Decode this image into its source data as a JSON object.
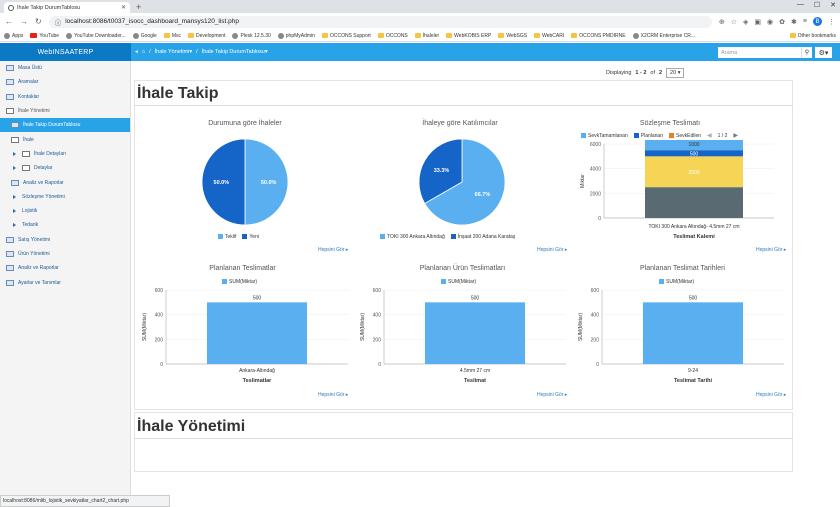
{
  "browser": {
    "tab_title": "İhale Takip DurumTablosu",
    "url": "localhost:8086/t0037_isocc_dashboard_mansys120_list.php",
    "bookmarks": [
      "Apps",
      "YouTube",
      "YouTube Downloader...",
      "Google",
      "Msc",
      "Development",
      "Plesk 12.5.30",
      "phpMyAdmin",
      "OCCONS Support",
      "OCCONS",
      "İhaleler",
      "WebKOBIS ERP",
      "WebSGS",
      "WebCARI",
      "OCCONS PMDIRNE",
      "X2CRM Enterprise CR...",
      "Other bookmarks"
    ],
    "status_url": "localhost:8086/mlib_lojistik_sevkiyatlar_chart2_chart.php"
  },
  "app": {
    "brand": "WebINSAATERP",
    "breadcrumb": [
      "İhale Yönetimi",
      "İhale Takip DurumTablosu"
    ],
    "search_placeholder": "Arama"
  },
  "sidebar": {
    "items": [
      {
        "label": "Masa Üstü"
      },
      {
        "label": "Aramalar"
      },
      {
        "label": "Kontaklar"
      },
      {
        "label": "İhale Yönetimi"
      },
      {
        "label": "İhale Takip DurumTablosu"
      },
      {
        "label": "İhale"
      },
      {
        "label": "İhale Detayları"
      },
      {
        "label": "Detaylar"
      },
      {
        "label": "Analiz ve Raporlar"
      },
      {
        "label": "Sözleşme Yönetimi"
      },
      {
        "label": "Lojistik"
      },
      {
        "label": "Tedarik"
      },
      {
        "label": "Satış Yönetimi"
      },
      {
        "label": "Ürün Yönetimi"
      },
      {
        "label": "Analiz ve Raporlar"
      },
      {
        "label": "Ayarlar ve Tanımlar"
      }
    ]
  },
  "pager": {
    "prefix": "Displaying",
    "range": "1 - 2",
    "of": "of",
    "total": "2",
    "page_size": "20"
  },
  "main": {
    "title": "İhale Takip",
    "section2_title": "İhale Yönetimi",
    "see_all": "Hepsini Gör"
  },
  "colors": {
    "light_blue": "#5aaff0",
    "dark_blue": "#1565c8",
    "orange": "#f07d22",
    "yellow": "#f5d456",
    "slate": "#5a6a72"
  },
  "chart_data": [
    {
      "type": "pie",
      "title": "Durumuna göre İhaleler",
      "labels": [
        "Teklif",
        "Yeni"
      ],
      "values": [
        50.0,
        50.0
      ],
      "value_labels": [
        "50.0%",
        "50.0%"
      ]
    },
    {
      "type": "pie",
      "title": "İhaleye göre Katılımcılar",
      "labels": [
        "TOKI 300 Ankara Altındağ",
        "İnşaat 200 Adana Karataş"
      ],
      "values": [
        66.7,
        33.3
      ],
      "value_labels": [
        "66.7%",
        "33.3%"
      ]
    },
    {
      "type": "bar",
      "title": "Sözleşme Teslimatı",
      "legend": [
        "SevkTamamlanan",
        "Planlanan",
        "SevkEdilen"
      ],
      "legend_pager": "1 / 2",
      "categories": [
        "TOKI 300 Ankara Altındağ- 4.5mm 27 cm"
      ],
      "stack": [
        {
          "label": "",
          "value": 2500
        },
        {
          "label": "2500",
          "value": 2500
        },
        {
          "label": "500",
          "value": 500
        },
        {
          "label": "1000",
          "value": 1000
        }
      ],
      "xlabel": "Teslimat Kalemi",
      "ylabel": "Miktar",
      "ylim": [
        0,
        6000
      ],
      "yticks": [
        "6000",
        "4000",
        "2000",
        "0"
      ]
    },
    {
      "type": "bar",
      "title": "Planlanan Teslimatlar",
      "legend": [
        "SUM(Miktar)"
      ],
      "categories": [
        "Ankara-Altındağ"
      ],
      "values": [
        500
      ],
      "value_labels": [
        "500"
      ],
      "xlabel": "Teslimatlar",
      "ylabel": "SUM(Miktar)",
      "ylim": [
        0,
        600
      ],
      "yticks": [
        "600",
        "400",
        "200",
        "0"
      ]
    },
    {
      "type": "bar",
      "title": "Planlanan Ürün Teslimatları",
      "legend": [
        "SUM(Miktar)"
      ],
      "categories": [
        "4.5mm 27 cm"
      ],
      "values": [
        500
      ],
      "value_labels": [
        "500"
      ],
      "xlabel": "Teslimat",
      "ylabel": "SUM(Miktar)",
      "ylim": [
        0,
        600
      ],
      "yticks": [
        "600",
        "400",
        "200",
        "0"
      ]
    },
    {
      "type": "bar",
      "title": "Planlanan Teslimat Tarihleri",
      "legend": [
        "SUM(Miktar)"
      ],
      "categories": [
        "9-24"
      ],
      "values": [
        500
      ],
      "value_labels": [
        "500"
      ],
      "xlabel": "Teslimat Tarihi",
      "ylabel": "SUM(Miktar)",
      "ylim": [
        0,
        600
      ],
      "yticks": [
        "600",
        "400",
        "200",
        "0"
      ]
    }
  ]
}
